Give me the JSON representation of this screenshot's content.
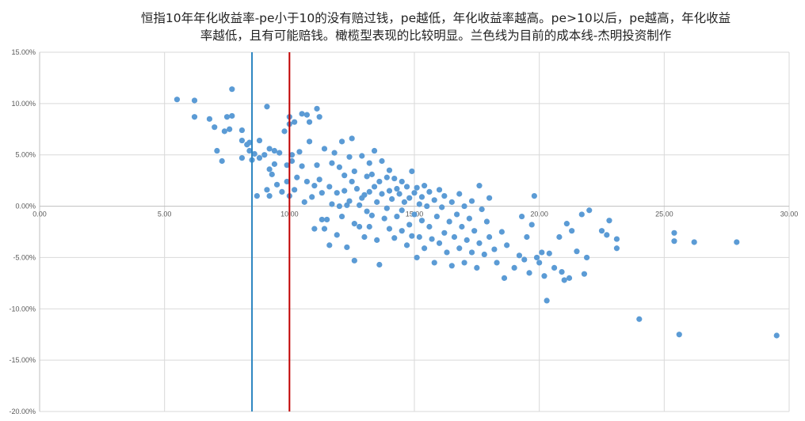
{
  "chart_data": {
    "type": "scatter",
    "title_line1": "恒指10年年化收益率-pe小于10的没有赔过钱，pe越低，年化收益率越高。pe>10以后，pe越高，年化收益",
    "title_line2": "率越低，且有可能赔钱。橄榄型表现的比较明显。兰色线为目前的成本线-杰明投资制作",
    "xlabel": "",
    "ylabel": "",
    "xlim": [
      0,
      30
    ],
    "ylim": [
      -0.2,
      0.15
    ],
    "x_ticks": [
      0,
      5,
      10,
      15,
      20,
      25,
      30
    ],
    "x_tick_labels": [
      "0.00",
      "5.00",
      "10.00",
      "15.00",
      "20.00",
      "25.00",
      "30.00"
    ],
    "y_ticks": [
      0.15,
      0.1,
      0.05,
      0.0,
      -0.05,
      -0.1,
      -0.15,
      -0.2
    ],
    "y_tick_labels": [
      "15.00%",
      "10.00%",
      "5.00%",
      "0.00%",
      "-5.00%",
      "-10.00%",
      "-15.00%",
      "-20.00%"
    ],
    "grid": true,
    "point_color": "#5b9bd5",
    "vlines": [
      {
        "x": 8.5,
        "color": "#2e86c1"
      },
      {
        "x": 10.0,
        "color": "#c00000"
      }
    ],
    "points": [
      [
        5.5,
        0.104
      ],
      [
        6.2,
        0.103
      ],
      [
        6.2,
        0.087
      ],
      [
        6.8,
        0.085
      ],
      [
        7.0,
        0.077
      ],
      [
        7.1,
        0.054
      ],
      [
        7.3,
        0.044
      ],
      [
        7.4,
        0.073
      ],
      [
        7.5,
        0.087
      ],
      [
        7.6,
        0.075
      ],
      [
        7.7,
        0.088
      ],
      [
        7.7,
        0.114
      ],
      [
        8.1,
        0.074
      ],
      [
        8.1,
        0.064
      ],
      [
        8.1,
        0.047
      ],
      [
        8.3,
        0.06
      ],
      [
        8.4,
        0.062
      ],
      [
        8.4,
        0.054
      ],
      [
        8.5,
        0.045
      ],
      [
        8.6,
        0.051
      ],
      [
        8.7,
        0.01
      ],
      [
        8.8,
        0.047
      ],
      [
        8.8,
        0.064
      ],
      [
        9.0,
        0.05
      ],
      [
        9.1,
        0.097
      ],
      [
        9.1,
        0.016
      ],
      [
        9.2,
        0.056
      ],
      [
        9.2,
        0.036
      ],
      [
        9.2,
        0.01
      ],
      [
        9.3,
        0.031
      ],
      [
        9.4,
        0.041
      ],
      [
        9.4,
        0.054
      ],
      [
        9.5,
        0.021
      ],
      [
        9.6,
        0.052
      ],
      [
        9.7,
        0.014
      ],
      [
        9.8,
        0.073
      ],
      [
        9.9,
        0.04
      ],
      [
        9.9,
        0.024
      ],
      [
        10.0,
        0.087
      ],
      [
        10.0,
        0.08
      ],
      [
        10.0,
        0.01
      ],
      [
        10.1,
        0.05
      ],
      [
        10.1,
        0.044
      ],
      [
        10.2,
        0.082
      ],
      [
        10.2,
        0.016
      ],
      [
        10.3,
        0.028
      ],
      [
        10.4,
        0.053
      ],
      [
        10.5,
        0.09
      ],
      [
        10.5,
        0.039
      ],
      [
        10.6,
        0.004
      ],
      [
        10.7,
        0.089
      ],
      [
        10.7,
        0.024
      ],
      [
        10.8,
        0.082
      ],
      [
        10.8,
        0.063
      ],
      [
        10.9,
        0.009
      ],
      [
        11.0,
        0.02
      ],
      [
        11.0,
        -0.022
      ],
      [
        11.1,
        0.095
      ],
      [
        11.1,
        0.04
      ],
      [
        11.2,
        0.087
      ],
      [
        11.2,
        0.026
      ],
      [
        11.3,
        -0.013
      ],
      [
        11.3,
        0.013
      ],
      [
        11.4,
        0.056
      ],
      [
        11.4,
        -0.022
      ],
      [
        11.5,
        -0.013
      ],
      [
        11.6,
        0.019
      ],
      [
        11.6,
        -0.038
      ],
      [
        11.7,
        0.042
      ],
      [
        11.7,
        0.002
      ],
      [
        11.8,
        0.052
      ],
      [
        11.9,
        0.013
      ],
      [
        11.9,
        -0.028
      ],
      [
        12.0,
        0.038
      ],
      [
        12.0,
        0.0
      ],
      [
        12.1,
        0.063
      ],
      [
        12.1,
        -0.01
      ],
      [
        12.2,
        0.03
      ],
      [
        12.2,
        0.015
      ],
      [
        12.3,
        0.001
      ],
      [
        12.3,
        -0.04
      ],
      [
        12.4,
        0.048
      ],
      [
        12.4,
        0.005
      ],
      [
        12.5,
        0.066
      ],
      [
        12.5,
        0.024
      ],
      [
        12.6,
        0.034
      ],
      [
        12.6,
        -0.017
      ],
      [
        12.6,
        -0.053
      ],
      [
        12.7,
        0.017
      ],
      [
        12.8,
        0.001
      ],
      [
        12.8,
        -0.02
      ],
      [
        12.9,
        0.049
      ],
      [
        12.9,
        0.008
      ],
      [
        13.0,
        0.011
      ],
      [
        13.0,
        -0.03
      ],
      [
        13.1,
        0.029
      ],
      [
        13.1,
        -0.005
      ],
      [
        13.2,
        0.042
      ],
      [
        13.2,
        0.014
      ],
      [
        13.2,
        -0.02
      ],
      [
        13.3,
        0.031
      ],
      [
        13.3,
        -0.009
      ],
      [
        13.4,
        0.054
      ],
      [
        13.4,
        0.019
      ],
      [
        13.5,
        0.004
      ],
      [
        13.5,
        -0.033
      ],
      [
        13.6,
        0.024
      ],
      [
        13.6,
        -0.057
      ],
      [
        13.7,
        0.044
      ],
      [
        13.7,
        0.012
      ],
      [
        13.8,
        -0.012
      ],
      [
        13.9,
        0.028
      ],
      [
        13.9,
        -0.002
      ],
      [
        14.0,
        0.035
      ],
      [
        14.0,
        0.015
      ],
      [
        14.0,
        -0.022
      ],
      [
        14.1,
        0.007
      ],
      [
        14.2,
        0.027
      ],
      [
        14.2,
        -0.031
      ],
      [
        14.3,
        0.017
      ],
      [
        14.3,
        -0.01
      ],
      [
        14.4,
        0.012
      ],
      [
        14.5,
        0.024
      ],
      [
        14.5,
        -0.004
      ],
      [
        14.5,
        -0.024
      ],
      [
        14.6,
        0.004
      ],
      [
        14.7,
        0.019
      ],
      [
        14.7,
        -0.038
      ],
      [
        14.8,
        0.008
      ],
      [
        14.8,
        -0.018
      ],
      [
        14.9,
        0.034
      ],
      [
        14.9,
        -0.029
      ],
      [
        15.0,
        0.013
      ],
      [
        15.0,
        -0.008
      ],
      [
        15.1,
        0.018
      ],
      [
        15.1,
        -0.05
      ],
      [
        15.2,
        0.002
      ],
      [
        15.2,
        -0.03
      ],
      [
        15.3,
        0.009
      ],
      [
        15.3,
        -0.014
      ],
      [
        15.4,
        0.02
      ],
      [
        15.4,
        -0.041
      ],
      [
        15.5,
        0.0
      ],
      [
        15.6,
        -0.02
      ],
      [
        15.6,
        0.014
      ],
      [
        15.7,
        -0.032
      ],
      [
        15.8,
        0.006
      ],
      [
        15.8,
        -0.055
      ],
      [
        15.9,
        -0.01
      ],
      [
        16.0,
        0.016
      ],
      [
        16.0,
        -0.036
      ],
      [
        16.1,
        -0.001
      ],
      [
        16.2,
        -0.026
      ],
      [
        16.2,
        0.01
      ],
      [
        16.3,
        -0.045
      ],
      [
        16.4,
        -0.015
      ],
      [
        16.5,
        0.004
      ],
      [
        16.5,
        -0.058
      ],
      [
        16.6,
        -0.03
      ],
      [
        16.7,
        -0.008
      ],
      [
        16.8,
        0.012
      ],
      [
        16.8,
        -0.041
      ],
      [
        16.9,
        -0.02
      ],
      [
        17.0,
        0.0
      ],
      [
        17.0,
        -0.055
      ],
      [
        17.1,
        -0.033
      ],
      [
        17.2,
        -0.012
      ],
      [
        17.3,
        0.005
      ],
      [
        17.3,
        -0.045
      ],
      [
        17.4,
        -0.024
      ],
      [
        17.5,
        -0.06
      ],
      [
        17.6,
        -0.036
      ],
      [
        17.6,
        0.02
      ],
      [
        17.7,
        -0.003
      ],
      [
        17.8,
        -0.047
      ],
      [
        17.9,
        -0.015
      ],
      [
        18.0,
        -0.03
      ],
      [
        18.0,
        0.008
      ],
      [
        18.2,
        -0.042
      ],
      [
        18.3,
        -0.055
      ],
      [
        18.5,
        -0.025
      ],
      [
        18.6,
        -0.07
      ],
      [
        18.7,
        -0.038
      ],
      [
        19.0,
        -0.06
      ],
      [
        19.2,
        -0.048
      ],
      [
        19.3,
        -0.01
      ],
      [
        19.4,
        -0.052
      ],
      [
        19.5,
        -0.03
      ],
      [
        19.6,
        -0.065
      ],
      [
        19.7,
        -0.018
      ],
      [
        19.8,
        0.01
      ],
      [
        19.9,
        -0.05
      ],
      [
        20.0,
        -0.055
      ],
      [
        20.1,
        -0.045
      ],
      [
        20.2,
        -0.068
      ],
      [
        20.3,
        -0.092
      ],
      [
        20.4,
        -0.046
      ],
      [
        20.6,
        -0.06
      ],
      [
        20.8,
        -0.03
      ],
      [
        20.9,
        -0.064
      ],
      [
        21.0,
        -0.072
      ],
      [
        21.1,
        -0.017
      ],
      [
        21.2,
        -0.07
      ],
      [
        21.3,
        -0.024
      ],
      [
        21.5,
        -0.044
      ],
      [
        21.7,
        -0.008
      ],
      [
        21.8,
        -0.066
      ],
      [
        21.9,
        -0.05
      ],
      [
        22.0,
        -0.004
      ],
      [
        22.5,
        -0.024
      ],
      [
        22.7,
        -0.028
      ],
      [
        22.8,
        -0.014
      ],
      [
        23.1,
        -0.032
      ],
      [
        23.1,
        -0.041
      ],
      [
        24.0,
        -0.11
      ],
      [
        25.4,
        -0.026
      ],
      [
        25.4,
        -0.034
      ],
      [
        25.6,
        -0.125
      ],
      [
        26.2,
        -0.035
      ],
      [
        27.9,
        -0.035
      ],
      [
        29.5,
        -0.126
      ]
    ]
  }
}
